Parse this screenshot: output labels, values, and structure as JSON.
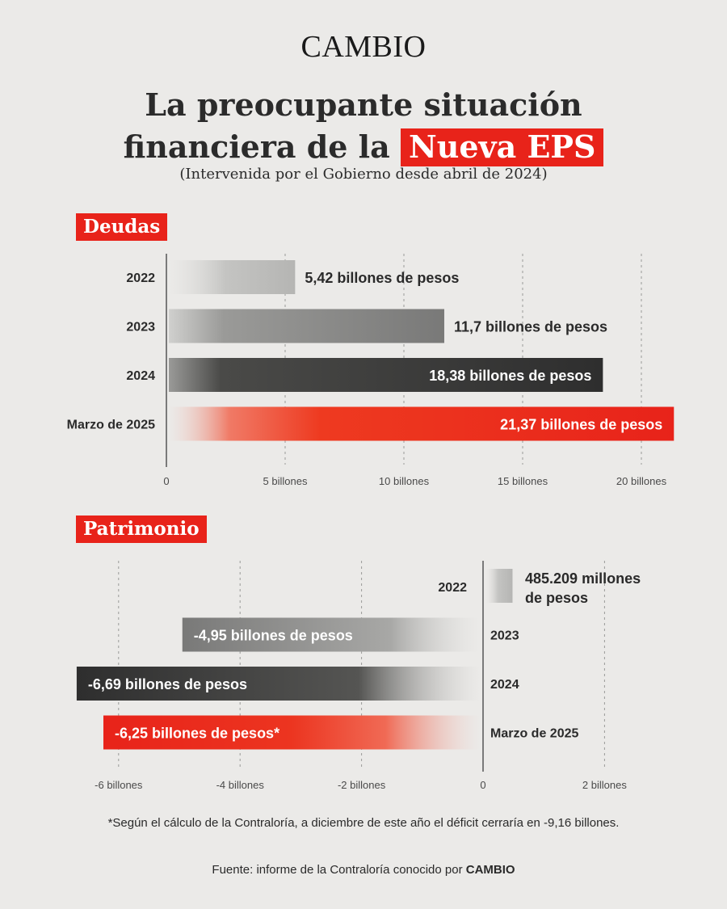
{
  "brand": "CAMBIO",
  "title_line1": "La preocupante situación",
  "title_line2_prefix": "financiera de la",
  "title_highlight": "Nueva EPS",
  "subtitle": "(Intervenida por el Gobierno desde abril de 2024)",
  "footnote": "*Según el cálculo de la Contraloría, a diciembre de este año el déficit cerraría en -9,16 billones.",
  "source_prefix": "Fuente: informe de la Contraloría conocido por",
  "source_brand": "CAMBIO",
  "colors": {
    "accent": "#e8231a",
    "light_gray": "#b5b5b3",
    "mid_gray": "#797978",
    "dark": "#2e2e2e",
    "text": "#2a2a2a"
  },
  "chart_data": [
    {
      "type": "bar",
      "orientation": "horizontal",
      "title": "Deudas",
      "categories": [
        "2022",
        "2023",
        "2024",
        "Marzo de 2025"
      ],
      "values": [
        5.42,
        11.7,
        18.38,
        21.37
      ],
      "data_labels": [
        "5,42 billones de pesos",
        "11,7 billones de pesos",
        "18,38 billones de pesos",
        "21,37 billones de pesos"
      ],
      "xlim": [
        0,
        21.5
      ],
      "ticks": [
        0,
        5,
        10,
        15,
        20
      ],
      "tick_labels": [
        "0",
        "5 billones",
        "10 billones",
        "15 billones",
        "20 billones"
      ],
      "grid": true
    },
    {
      "type": "bar",
      "orientation": "horizontal",
      "title": "Patrimonio",
      "categories": [
        "2022",
        "2023",
        "2024",
        "Marzo de 2025"
      ],
      "values": [
        0.485209,
        -4.95,
        -6.69,
        -6.25
      ],
      "data_labels": [
        "485.209 millones de pesos",
        "-4,95 billones de pesos",
        "-6,69 billones de pesos",
        "-6,25 billones de pesos*"
      ],
      "xlim": [
        -6.7,
        2
      ],
      "ticks": [
        -6,
        -4,
        -2,
        0,
        2
      ],
      "tick_labels": [
        "-6 billones",
        "-4 billones",
        "-2 billones",
        "0",
        "2 billones"
      ],
      "grid": true
    }
  ]
}
